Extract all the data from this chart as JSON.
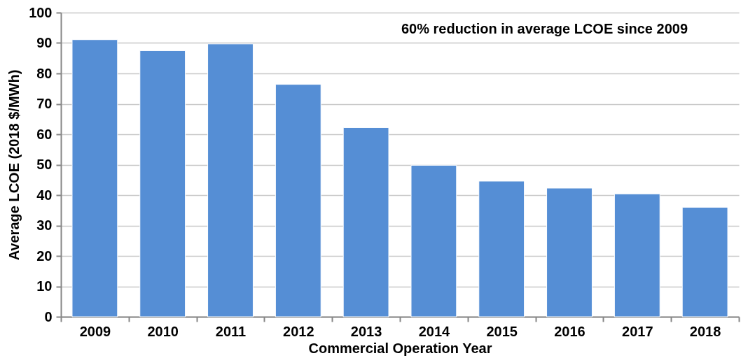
{
  "chart_data": {
    "type": "bar",
    "xlabel": "Commercial Operation Year",
    "ylabel": "Average LCOE (2018 $/MWh)",
    "categories": [
      "2009",
      "2010",
      "2011",
      "2012",
      "2013",
      "2014",
      "2015",
      "2016",
      "2017",
      "2018"
    ],
    "values": [
      91.1,
      87.5,
      89.7,
      76.4,
      62.2,
      49.8,
      44.6,
      42.3,
      40.4,
      36.0
    ],
    "color": "#558ed5",
    "ylim": [
      0,
      100
    ],
    "yticks": [
      0,
      10,
      20,
      30,
      40,
      50,
      60,
      70,
      80,
      90,
      100
    ],
    "grid": "y",
    "annotations": [
      "60% reduction in average LCOE since 2009"
    ]
  }
}
